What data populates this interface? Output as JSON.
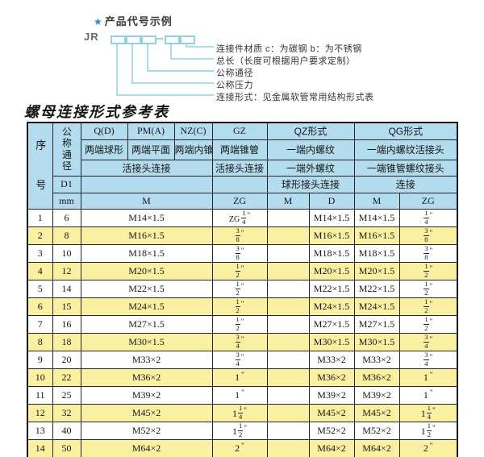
{
  "diagram": {
    "star": "★",
    "title": "产品代号示例",
    "code_prefix": "JR",
    "labels": [
      "连接件材质  c：为碳钢  b：为不锈钢",
      "总长（长度可根据用户要求定制）",
      "公称通径",
      "公称压力",
      "连接形式：见金属软管常用结构形式表"
    ]
  },
  "table": {
    "title": "螺母连接形式参考表",
    "inch_mark": "\"",
    "header": {
      "seq": "序号",
      "nominal_diameter": "公称通径",
      "d1": "D1",
      "mm": "mm",
      "forms_row1": [
        "Q(D)",
        "PM(A)",
        "NZ(C)",
        "GZ",
        "QZ形式",
        "QG形式"
      ],
      "forms_row2": [
        "两端球形",
        "两端平面",
        "两端内锥",
        "两端锥管",
        "一端内螺纹",
        "一端内螺纹活接头"
      ],
      "forms_row3": [
        "活接头连接",
        "活接头连接",
        "一端外螺纹",
        "一端锥管螺纹接头"
      ],
      "forms_row4": [
        "",
        "",
        "球形接头连接",
        "连接"
      ],
      "unit_row": [
        "M",
        "ZG",
        "M",
        "D",
        "M",
        "ZG"
      ]
    },
    "rows": [
      {
        "seq": "1",
        "mm": "6",
        "m": "M14×1.5",
        "gz_zg": {
          "p": "ZG",
          "n": "1",
          "d": "4"
        },
        "qz_m": "",
        "qz_d": "M14×1.5",
        "qg_m": "M14×1.5",
        "qg_zg": {
          "n": "1",
          "d": "4"
        }
      },
      {
        "seq": "2",
        "mm": "8",
        "m": "M16×1.5",
        "gz_zg": {
          "n": "3",
          "d": "8"
        },
        "qz_m": "",
        "qz_d": "M16×1.5",
        "qg_m": "M16×1.5",
        "qg_zg": {
          "n": "3",
          "d": "8"
        }
      },
      {
        "seq": "3",
        "mm": "10",
        "m": "M18×1.5",
        "gz_zg": {
          "n": "3",
          "d": "8"
        },
        "qz_m": "",
        "qz_d": "M18×1.5",
        "qg_m": "M18×1.5",
        "qg_zg": {
          "n": "3",
          "d": "8"
        }
      },
      {
        "seq": "4",
        "mm": "12",
        "m": "M20×1.5",
        "gz_zg": {
          "n": "1",
          "d": "2"
        },
        "qz_m": "",
        "qz_d": "M20×1.5",
        "qg_m": "M20×1.5",
        "qg_zg": {
          "n": "1",
          "d": "2"
        }
      },
      {
        "seq": "5",
        "mm": "14",
        "m": "M22×1.5",
        "gz_zg": {
          "n": "1",
          "d": "2"
        },
        "qz_m": "",
        "qz_d": "M22×1.5",
        "qg_m": "M22×1.5",
        "qg_zg": {
          "n": "1",
          "d": "2"
        }
      },
      {
        "seq": "6",
        "mm": "15",
        "m": "M24×1.5",
        "gz_zg": {
          "n": "1",
          "d": "2"
        },
        "qz_m": "",
        "qz_d": "M24×1.5",
        "qg_m": "M24×1.5",
        "qg_zg": {
          "n": "1",
          "d": "2"
        }
      },
      {
        "seq": "7",
        "mm": "16",
        "m": "M27×1.5",
        "gz_zg": {
          "n": "1",
          "d": "2"
        },
        "qz_m": "",
        "qz_d": "M27×1.5",
        "qg_m": "M27×1.5",
        "qg_zg": {
          "n": "1",
          "d": "2"
        }
      },
      {
        "seq": "8",
        "mm": "18",
        "m": "M30×1.5",
        "gz_zg": {
          "n": "3",
          "d": "4"
        },
        "qz_m": "",
        "qz_d": "M30×1.5",
        "qg_m": "M30×1.5",
        "qg_zg": {
          "n": "3",
          "d": "4"
        }
      },
      {
        "seq": "9",
        "mm": "20",
        "m": "M33×2",
        "gz_zg": {
          "n": "3",
          "d": "4"
        },
        "qz_m": "",
        "qz_d": "M33×2",
        "qg_m": "M33×2",
        "qg_zg": {
          "n": "3",
          "d": "4"
        }
      },
      {
        "seq": "10",
        "mm": "22",
        "m": "M36×2",
        "gz_zg": {
          "w": "1"
        },
        "qz_m": "",
        "qz_d": "M36×2",
        "qg_m": "M36×2",
        "qg_zg": {
          "w": "1"
        }
      },
      {
        "seq": "11",
        "mm": "25",
        "m": "M39×2",
        "gz_zg": {
          "w": "1"
        },
        "qz_m": "",
        "qz_d": "M39×2",
        "qg_m": "M39×2",
        "qg_zg": {
          "w": "1"
        }
      },
      {
        "seq": "12",
        "mm": "32",
        "m": "M45×2",
        "gz_zg": {
          "w": "1",
          "n": "1",
          "d": "4"
        },
        "qz_m": "",
        "qz_d": "M45×2",
        "qg_m": "M45×2",
        "qg_zg": {
          "w": "1",
          "n": "1",
          "d": "4"
        }
      },
      {
        "seq": "13",
        "mm": "40",
        "m": "M52×2",
        "gz_zg": {
          "w": "1",
          "n": "1",
          "d": "2"
        },
        "qz_m": "",
        "qz_d": "M52×2",
        "qg_m": "M52×2",
        "qg_zg": {
          "w": "1",
          "n": "1",
          "d": "2"
        }
      },
      {
        "seq": "14",
        "mm": "50",
        "m": "M64×2",
        "gz_zg": {
          "w": "2"
        },
        "qz_m": "",
        "qz_d": "M64×2",
        "qg_m": "M64×2",
        "qg_zg": {
          "w": "2"
        }
      }
    ]
  },
  "colors": {
    "header_bg": "#b3dcee",
    "alt_row_bg": "#faf0a2",
    "connector_cyan": "#8fd0e2",
    "star_blue": "#2e86c8",
    "border": "#252525"
  }
}
